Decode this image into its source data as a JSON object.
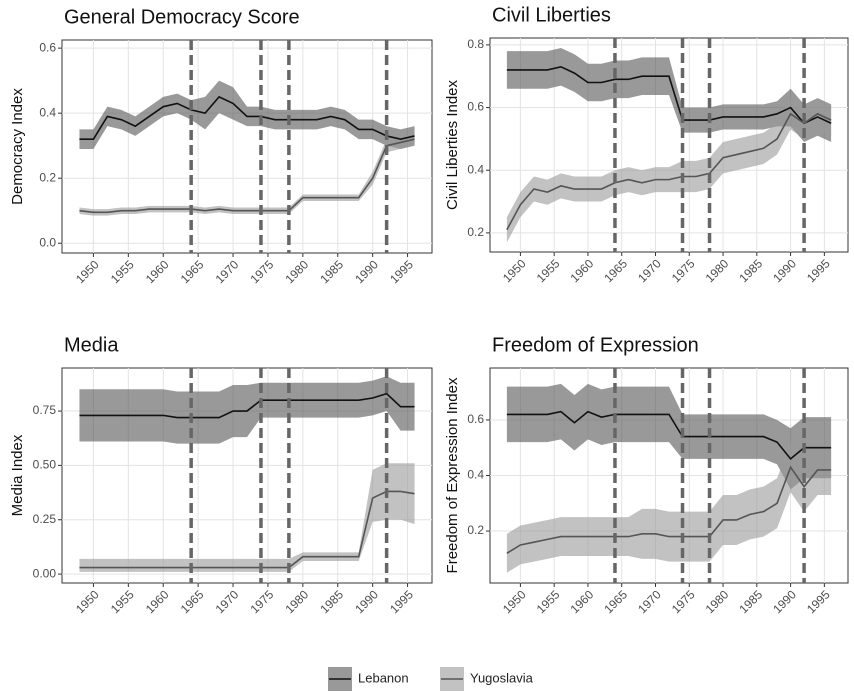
{
  "chart_data": [
    {
      "type": "line",
      "title": "General Democracy Score",
      "y_label": "Democracy Index",
      "x": [
        1948,
        1950,
        1952,
        1954,
        1956,
        1958,
        1960,
        1962,
        1964,
        1966,
        1968,
        1970,
        1972,
        1974,
        1976,
        1978,
        1980,
        1982,
        1984,
        1986,
        1988,
        1990,
        1992,
        1994,
        1996
      ],
      "xlim": [
        1945.5,
        1998.5
      ],
      "xticks": [
        1950,
        1955,
        1960,
        1965,
        1970,
        1975,
        1980,
        1985,
        1990,
        1995
      ],
      "ylim": [
        -0.03,
        0.625
      ],
      "yticks": [
        {
          "value": 0,
          "label": "0.0"
        },
        0.2,
        0.4,
        0.6
      ],
      "vlines": [
        1964,
        1974,
        1978,
        1992
      ],
      "grid": true,
      "series": [
        {
          "name": "Lebanon",
          "color": "#111111",
          "band_color": "#555555",
          "values": [
            0.32,
            0.32,
            0.39,
            0.38,
            0.36,
            0.39,
            0.42,
            0.43,
            0.41,
            0.4,
            0.45,
            0.43,
            0.39,
            0.39,
            0.38,
            0.38,
            0.38,
            0.38,
            0.39,
            0.38,
            0.35,
            0.35,
            0.33,
            0.32,
            0.33
          ],
          "lower": [
            0.29,
            0.29,
            0.36,
            0.35,
            0.33,
            0.36,
            0.39,
            0.4,
            0.38,
            0.35,
            0.4,
            0.38,
            0.36,
            0.36,
            0.35,
            0.35,
            0.35,
            0.35,
            0.36,
            0.35,
            0.32,
            0.32,
            0.3,
            0.29,
            0.3
          ],
          "upper": [
            0.35,
            0.35,
            0.42,
            0.41,
            0.39,
            0.42,
            0.45,
            0.46,
            0.44,
            0.45,
            0.5,
            0.48,
            0.42,
            0.42,
            0.41,
            0.41,
            0.41,
            0.41,
            0.42,
            0.41,
            0.38,
            0.38,
            0.36,
            0.35,
            0.36
          ]
        },
        {
          "name": "Yugoslavia",
          "color": "#555555",
          "band_color": "#999999",
          "values": [
            0.1,
            0.095,
            0.095,
            0.1,
            0.1,
            0.105,
            0.105,
            0.105,
            0.105,
            0.1,
            0.105,
            0.1,
            0.1,
            0.1,
            0.1,
            0.1,
            0.14,
            0.14,
            0.14,
            0.14,
            0.14,
            0.2,
            0.3,
            0.31,
            0.32
          ],
          "lower": [
            0.09,
            0.085,
            0.085,
            0.09,
            0.09,
            0.095,
            0.095,
            0.095,
            0.095,
            0.09,
            0.095,
            0.09,
            0.09,
            0.09,
            0.09,
            0.09,
            0.13,
            0.13,
            0.13,
            0.13,
            0.13,
            0.18,
            0.28,
            0.29,
            0.3
          ],
          "upper": [
            0.11,
            0.105,
            0.105,
            0.11,
            0.11,
            0.115,
            0.115,
            0.115,
            0.115,
            0.11,
            0.115,
            0.11,
            0.11,
            0.11,
            0.11,
            0.11,
            0.15,
            0.15,
            0.15,
            0.15,
            0.15,
            0.22,
            0.32,
            0.33,
            0.34
          ]
        }
      ]
    },
    {
      "type": "line",
      "title": "Civil Liberties",
      "y_label": "Civil Liberties Index",
      "x": [
        1948,
        1950,
        1952,
        1954,
        1956,
        1958,
        1960,
        1962,
        1964,
        1966,
        1968,
        1970,
        1972,
        1974,
        1976,
        1978,
        1980,
        1982,
        1984,
        1986,
        1988,
        1990,
        1992,
        1994,
        1996
      ],
      "xlim": [
        1945.5,
        1998.5
      ],
      "xticks": [
        1950,
        1955,
        1960,
        1965,
        1970,
        1975,
        1980,
        1985,
        1990,
        1995
      ],
      "ylim": [
        0.139,
        0.822
      ],
      "yticks": [
        0.2,
        0.4,
        0.6,
        0.8
      ],
      "vlines": [
        1964,
        1974,
        1978,
        1992
      ],
      "grid": true,
      "series": [
        {
          "name": "Lebanon",
          "color": "#111111",
          "band_color": "#555555",
          "values": [
            0.72,
            0.72,
            0.72,
            0.72,
            0.73,
            0.71,
            0.68,
            0.68,
            0.69,
            0.69,
            0.7,
            0.7,
            0.7,
            0.56,
            0.56,
            0.56,
            0.57,
            0.57,
            0.57,
            0.57,
            0.58,
            0.6,
            0.55,
            0.57,
            0.55
          ],
          "lower": [
            0.66,
            0.66,
            0.66,
            0.66,
            0.67,
            0.65,
            0.62,
            0.62,
            0.63,
            0.63,
            0.64,
            0.64,
            0.64,
            0.52,
            0.52,
            0.52,
            0.53,
            0.53,
            0.53,
            0.53,
            0.54,
            0.54,
            0.49,
            0.51,
            0.49
          ],
          "upper": [
            0.78,
            0.78,
            0.78,
            0.78,
            0.79,
            0.77,
            0.74,
            0.74,
            0.75,
            0.75,
            0.76,
            0.76,
            0.76,
            0.6,
            0.6,
            0.6,
            0.61,
            0.61,
            0.61,
            0.61,
            0.62,
            0.66,
            0.61,
            0.63,
            0.61
          ]
        },
        {
          "name": "Yugoslavia",
          "color": "#555555",
          "band_color": "#999999",
          "values": [
            0.21,
            0.29,
            0.34,
            0.33,
            0.35,
            0.34,
            0.34,
            0.34,
            0.36,
            0.37,
            0.36,
            0.37,
            0.37,
            0.38,
            0.38,
            0.39,
            0.44,
            0.45,
            0.46,
            0.47,
            0.5,
            0.58,
            0.55,
            0.58,
            0.56
          ],
          "lower": [
            0.17,
            0.25,
            0.3,
            0.29,
            0.31,
            0.3,
            0.3,
            0.3,
            0.32,
            0.33,
            0.32,
            0.33,
            0.33,
            0.33,
            0.33,
            0.34,
            0.39,
            0.4,
            0.41,
            0.42,
            0.45,
            0.53,
            0.5,
            0.53,
            0.51
          ],
          "upper": [
            0.25,
            0.33,
            0.38,
            0.37,
            0.39,
            0.38,
            0.38,
            0.38,
            0.4,
            0.41,
            0.4,
            0.41,
            0.41,
            0.43,
            0.43,
            0.44,
            0.49,
            0.5,
            0.51,
            0.52,
            0.55,
            0.63,
            0.6,
            0.63,
            0.61
          ]
        }
      ]
    },
    {
      "type": "line",
      "title": "Media",
      "y_label": "Media Index",
      "x": [
        1948,
        1950,
        1952,
        1954,
        1956,
        1958,
        1960,
        1962,
        1964,
        1966,
        1968,
        1970,
        1972,
        1974,
        1976,
        1978,
        1980,
        1982,
        1984,
        1986,
        1988,
        1990,
        1992,
        1994,
        1996
      ],
      "xlim": [
        1945.5,
        1998.5
      ],
      "xticks": [
        1950,
        1955,
        1960,
        1965,
        1970,
        1975,
        1980,
        1985,
        1990,
        1995
      ],
      "ylim": [
        -0.041,
        0.948
      ],
      "yticks": [
        {
          "value": 0,
          "label": "0.00"
        },
        {
          "value": 0.25,
          "label": "0.25"
        },
        {
          "value": 0.5,
          "label": "0.50"
        },
        {
          "value": 0.75,
          "label": "0.75"
        }
      ],
      "vlines": [
        1964,
        1974,
        1978,
        1992
      ],
      "grid": true,
      "series": [
        {
          "name": "Lebanon",
          "color": "#111111",
          "band_color": "#555555",
          "values": [
            0.73,
            0.73,
            0.73,
            0.73,
            0.73,
            0.73,
            0.73,
            0.72,
            0.72,
            0.72,
            0.72,
            0.75,
            0.75,
            0.8,
            0.8,
            0.8,
            0.8,
            0.8,
            0.8,
            0.8,
            0.8,
            0.81,
            0.83,
            0.77,
            0.77
          ],
          "lower": [
            0.61,
            0.61,
            0.61,
            0.61,
            0.61,
            0.61,
            0.61,
            0.6,
            0.6,
            0.6,
            0.6,
            0.63,
            0.63,
            0.72,
            0.72,
            0.72,
            0.72,
            0.72,
            0.72,
            0.72,
            0.72,
            0.73,
            0.75,
            0.66,
            0.66
          ],
          "upper": [
            0.85,
            0.85,
            0.85,
            0.85,
            0.85,
            0.85,
            0.85,
            0.84,
            0.84,
            0.84,
            0.84,
            0.87,
            0.87,
            0.88,
            0.88,
            0.88,
            0.88,
            0.88,
            0.88,
            0.88,
            0.88,
            0.89,
            0.91,
            0.88,
            0.88
          ]
        },
        {
          "name": "Yugoslavia",
          "color": "#555555",
          "band_color": "#999999",
          "values": [
            0.03,
            0.03,
            0.03,
            0.03,
            0.03,
            0.03,
            0.03,
            0.03,
            0.03,
            0.03,
            0.03,
            0.03,
            0.03,
            0.03,
            0.03,
            0.03,
            0.08,
            0.08,
            0.08,
            0.08,
            0.08,
            0.35,
            0.38,
            0.38,
            0.37
          ],
          "lower": [
            0.01,
            0.01,
            0.01,
            0.01,
            0.01,
            0.01,
            0.01,
            0.01,
            0.01,
            0.01,
            0.01,
            0.01,
            0.01,
            0.01,
            0.01,
            0.01,
            0.06,
            0.06,
            0.06,
            0.06,
            0.06,
            0.24,
            0.25,
            0.25,
            0.23
          ],
          "upper": [
            0.07,
            0.07,
            0.07,
            0.07,
            0.07,
            0.07,
            0.07,
            0.07,
            0.07,
            0.07,
            0.07,
            0.07,
            0.07,
            0.07,
            0.07,
            0.07,
            0.1,
            0.1,
            0.1,
            0.1,
            0.1,
            0.48,
            0.51,
            0.51,
            0.51
          ]
        }
      ]
    },
    {
      "type": "line",
      "title": "Freedom of Expression",
      "y_label": "Freedom of Expression Index",
      "x": [
        1948,
        1950,
        1952,
        1954,
        1956,
        1958,
        1960,
        1962,
        1964,
        1966,
        1968,
        1970,
        1972,
        1974,
        1976,
        1978,
        1980,
        1982,
        1984,
        1986,
        1988,
        1990,
        1992,
        1994,
        1996
      ],
      "xlim": [
        1945.5,
        1998.5
      ],
      "xticks": [
        1950,
        1955,
        1960,
        1965,
        1970,
        1975,
        1980,
        1985,
        1990,
        1995
      ],
      "ylim": [
        0.013,
        0.787
      ],
      "yticks": [
        0.2,
        0.4,
        0.6
      ],
      "vlines": [
        1964,
        1974,
        1978,
        1992
      ],
      "grid": true,
      "series": [
        {
          "name": "Lebanon",
          "color": "#111111",
          "band_color": "#555555",
          "values": [
            0.62,
            0.62,
            0.62,
            0.62,
            0.63,
            0.59,
            0.63,
            0.61,
            0.62,
            0.62,
            0.62,
            0.62,
            0.62,
            0.54,
            0.54,
            0.54,
            0.54,
            0.54,
            0.54,
            0.54,
            0.52,
            0.46,
            0.5,
            0.5,
            0.5
          ],
          "lower": [
            0.52,
            0.52,
            0.52,
            0.52,
            0.53,
            0.49,
            0.53,
            0.51,
            0.52,
            0.52,
            0.52,
            0.52,
            0.52,
            0.46,
            0.46,
            0.46,
            0.46,
            0.46,
            0.46,
            0.46,
            0.44,
            0.35,
            0.39,
            0.39,
            0.39
          ],
          "upper": [
            0.72,
            0.72,
            0.72,
            0.72,
            0.73,
            0.69,
            0.73,
            0.71,
            0.72,
            0.72,
            0.72,
            0.72,
            0.72,
            0.62,
            0.62,
            0.62,
            0.62,
            0.62,
            0.62,
            0.62,
            0.6,
            0.57,
            0.61,
            0.61,
            0.61
          ]
        },
        {
          "name": "Yugoslavia",
          "color": "#555555",
          "band_color": "#999999",
          "values": [
            0.12,
            0.15,
            0.16,
            0.17,
            0.18,
            0.18,
            0.18,
            0.18,
            0.18,
            0.18,
            0.19,
            0.19,
            0.18,
            0.18,
            0.18,
            0.18,
            0.24,
            0.24,
            0.26,
            0.27,
            0.3,
            0.43,
            0.36,
            0.42,
            0.42
          ],
          "lower": [
            0.05,
            0.08,
            0.09,
            0.1,
            0.11,
            0.11,
            0.11,
            0.11,
            0.11,
            0.11,
            0.1,
            0.1,
            0.09,
            0.09,
            0.09,
            0.09,
            0.15,
            0.15,
            0.17,
            0.18,
            0.21,
            0.34,
            0.27,
            0.33,
            0.33
          ],
          "upper": [
            0.19,
            0.22,
            0.23,
            0.24,
            0.25,
            0.25,
            0.25,
            0.25,
            0.25,
            0.25,
            0.28,
            0.28,
            0.27,
            0.27,
            0.27,
            0.27,
            0.33,
            0.33,
            0.35,
            0.36,
            0.39,
            0.52,
            0.45,
            0.51,
            0.51
          ]
        }
      ]
    }
  ]
}
